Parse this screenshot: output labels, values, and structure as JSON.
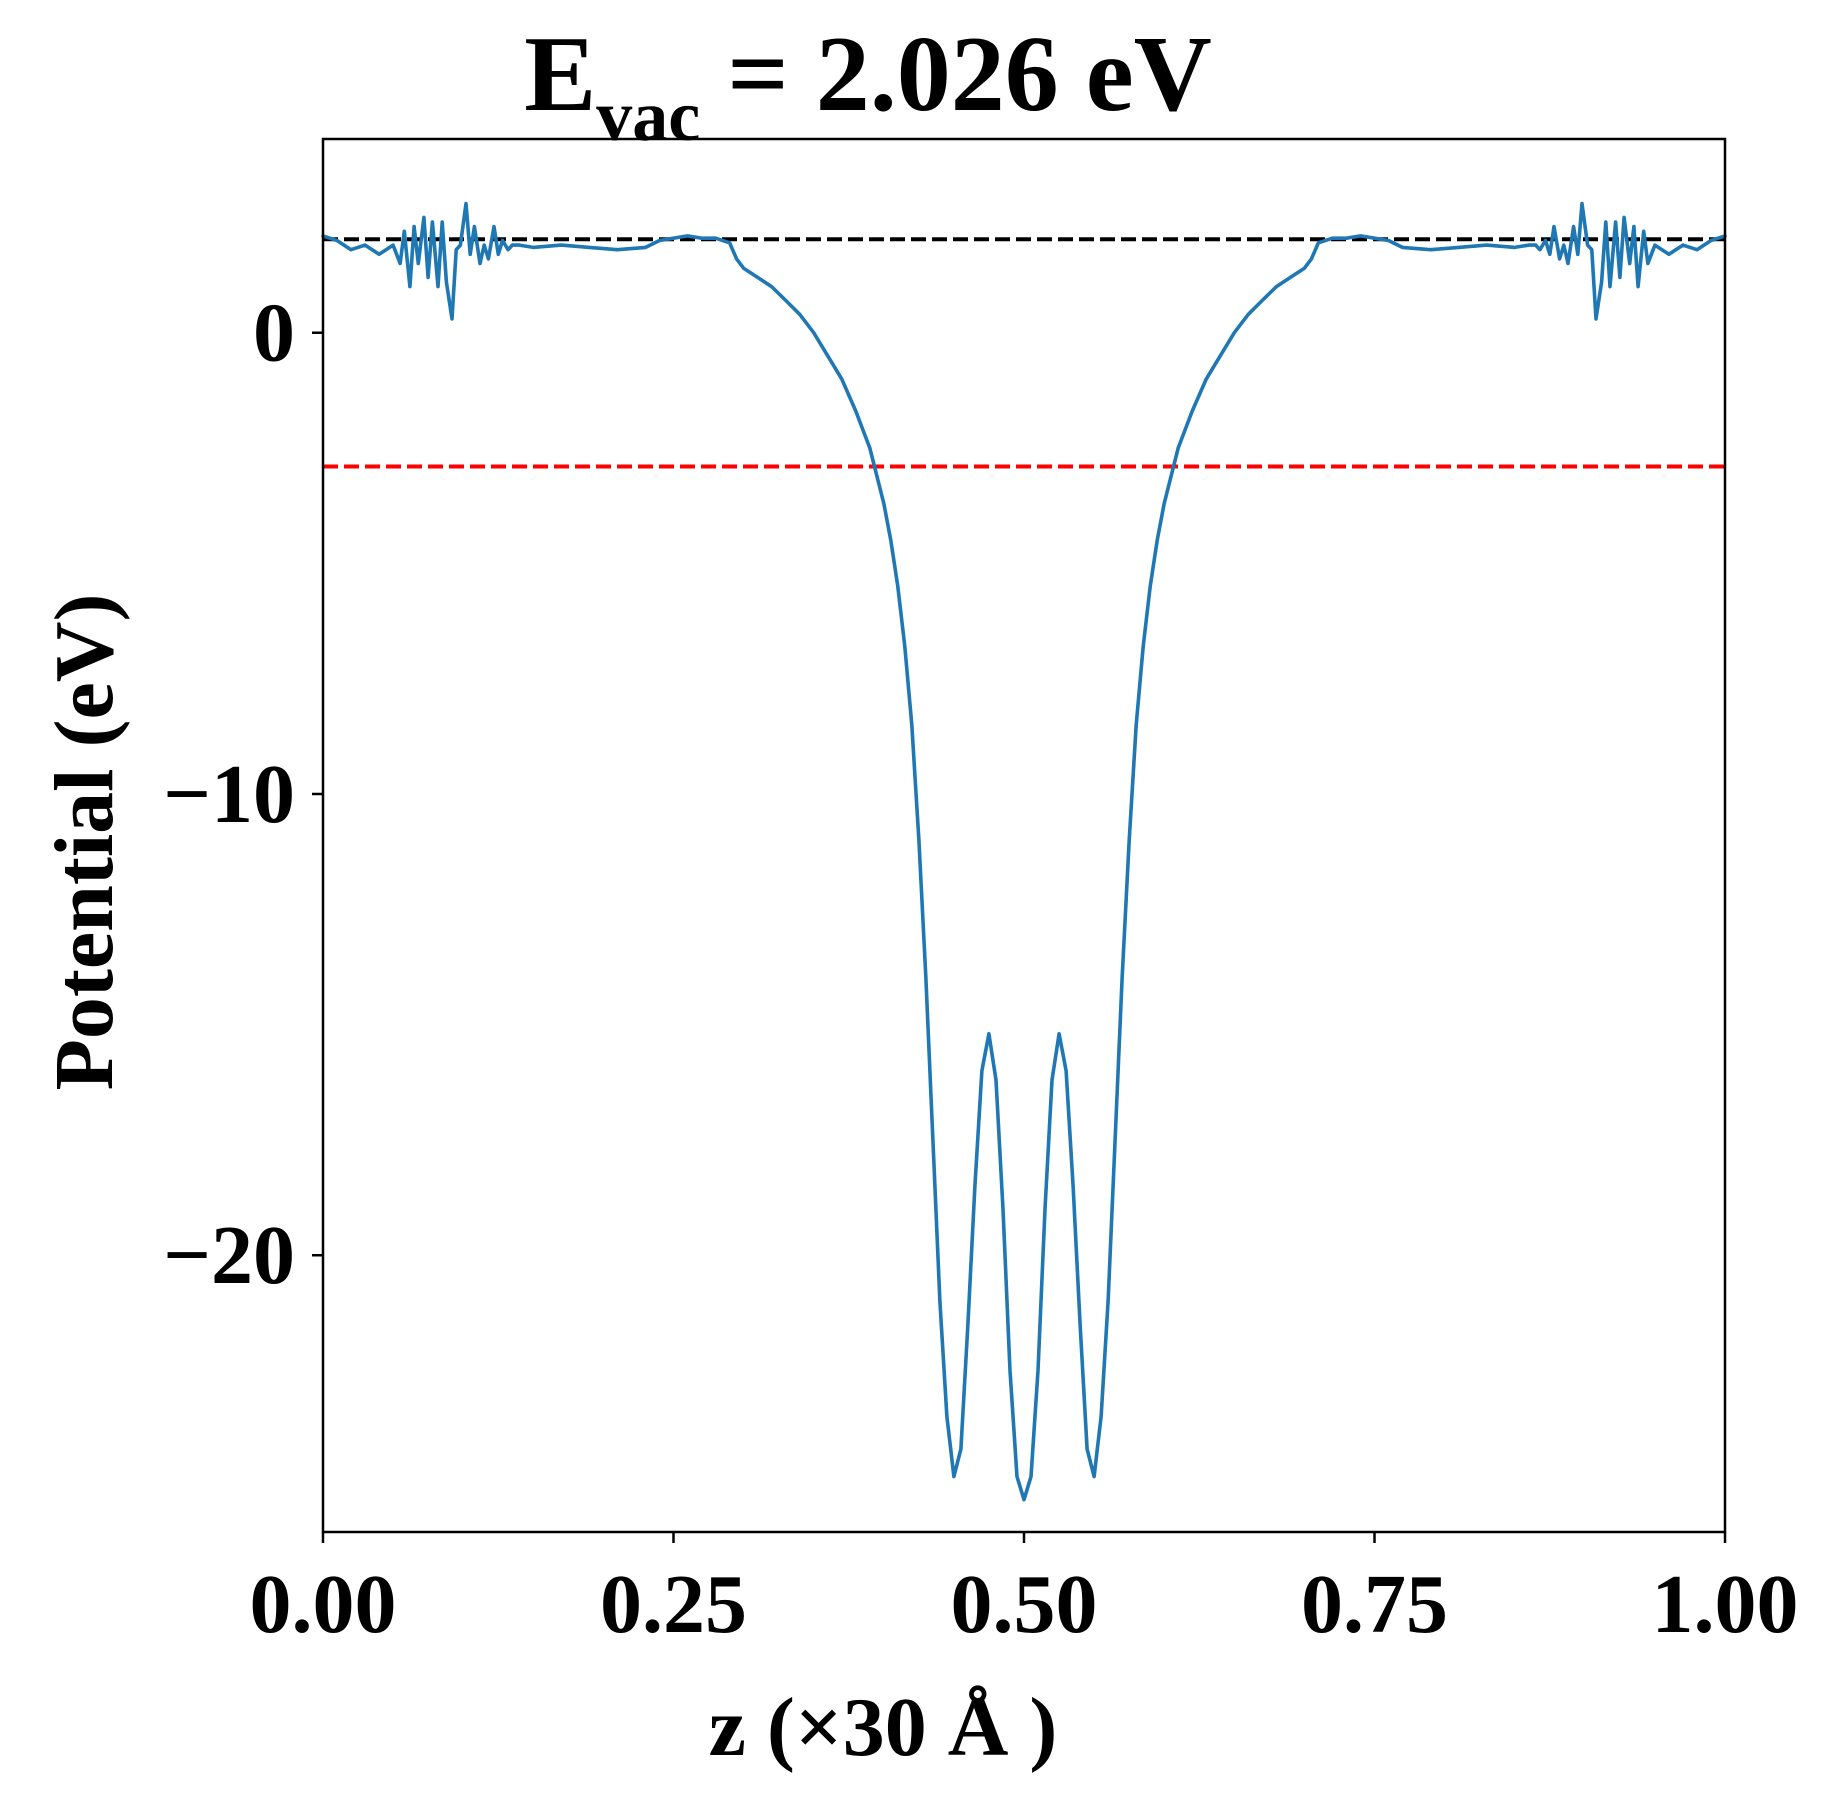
{
  "chart_data": {
    "type": "line",
    "title": {
      "prefix": "E",
      "subscript": "vac",
      "suffix": " = 2.026 eV"
    },
    "xlabel": "z (×30 Å )",
    "ylabel": "Potential (eV)",
    "xlim": [
      0.0,
      1.0
    ],
    "ylim": [
      -26.0,
      4.2
    ],
    "xticks": [
      0.0,
      0.25,
      0.5,
      0.75,
      1.0
    ],
    "xtick_labels": [
      "0.00",
      "0.25",
      "0.50",
      "0.75",
      "1.00"
    ],
    "yticks": [
      0,
      -10,
      -20
    ],
    "ytick_labels": [
      "0",
      "−10",
      "−20"
    ],
    "grid": false,
    "legend": "none",
    "reference_lines": [
      {
        "y": 2.026,
        "color": "#000000",
        "style": "dashed"
      },
      {
        "y": -2.9,
        "color": "#ff0000",
        "style": "dashed"
      }
    ],
    "series": [
      {
        "color": "#1f77b4",
        "x": [
          0.0,
          0.01,
          0.02,
          0.03,
          0.04,
          0.05,
          0.055,
          0.058,
          0.062,
          0.065,
          0.068,
          0.072,
          0.075,
          0.078,
          0.082,
          0.085,
          0.088,
          0.092,
          0.095,
          0.098,
          0.102,
          0.105,
          0.108,
          0.112,
          0.115,
          0.118,
          0.122,
          0.125,
          0.128,
          0.132,
          0.135,
          0.14,
          0.15,
          0.17,
          0.19,
          0.21,
          0.23,
          0.24,
          0.25,
          0.26,
          0.27,
          0.28,
          0.29,
          0.295,
          0.3,
          0.31,
          0.32,
          0.33,
          0.34,
          0.35,
          0.36,
          0.37,
          0.38,
          0.39,
          0.4,
          0.405,
          0.41,
          0.415,
          0.42,
          0.425,
          0.43,
          0.435,
          0.44,
          0.445,
          0.45,
          0.455,
          0.46,
          0.465,
          0.47,
          0.475,
          0.48,
          0.485,
          0.49,
          0.495,
          0.5,
          0.505,
          0.51,
          0.515,
          0.52,
          0.525,
          0.53,
          0.535,
          0.54,
          0.545,
          0.55,
          0.555,
          0.56,
          0.565,
          0.57,
          0.575,
          0.58,
          0.585,
          0.59,
          0.595,
          0.6,
          0.61,
          0.62,
          0.63,
          0.64,
          0.65,
          0.66,
          0.67,
          0.68,
          0.69,
          0.7,
          0.705,
          0.71,
          0.72,
          0.73,
          0.74,
          0.75,
          0.76,
          0.77,
          0.79,
          0.81,
          0.83,
          0.85,
          0.86,
          0.865,
          0.868,
          0.872,
          0.875,
          0.878,
          0.882,
          0.885,
          0.888,
          0.892,
          0.895,
          0.898,
          0.902,
          0.905,
          0.908,
          0.912,
          0.915,
          0.918,
          0.922,
          0.925,
          0.928,
          0.932,
          0.935,
          0.938,
          0.942,
          0.945,
          0.95,
          0.96,
          0.97,
          0.98,
          0.99,
          1.0
        ],
        "y": [
          2.1,
          2.0,
          1.8,
          1.9,
          1.7,
          1.9,
          1.5,
          2.2,
          1.0,
          2.3,
          1.5,
          2.5,
          1.2,
          2.4,
          1.0,
          2.4,
          1.1,
          0.3,
          1.8,
          1.9,
          2.8,
          1.7,
          2.3,
          1.5,
          1.9,
          1.6,
          2.3,
          1.7,
          2.0,
          1.8,
          1.9,
          1.9,
          1.85,
          1.9,
          1.85,
          1.8,
          1.85,
          2.0,
          2.05,
          2.1,
          2.05,
          2.05,
          1.95,
          1.6,
          1.4,
          1.2,
          1.0,
          0.7,
          0.4,
          0.0,
          -0.5,
          -1.0,
          -1.7,
          -2.5,
          -3.7,
          -4.5,
          -5.5,
          -6.8,
          -8.5,
          -11.0,
          -14.0,
          -17.5,
          -21.0,
          -23.5,
          -24.8,
          -24.2,
          -21.5,
          -18.5,
          -16.0,
          -15.2,
          -16.2,
          -19.0,
          -22.5,
          -24.8,
          -25.3,
          -24.8,
          -22.5,
          -19.0,
          -16.2,
          -15.2,
          -16.0,
          -18.5,
          -21.5,
          -24.2,
          -24.8,
          -23.5,
          -21.0,
          -17.5,
          -14.0,
          -11.0,
          -8.5,
          -6.8,
          -5.5,
          -4.5,
          -3.7,
          -2.5,
          -1.7,
          -1.0,
          -0.5,
          0.0,
          0.4,
          0.7,
          1.0,
          1.2,
          1.4,
          1.6,
          1.95,
          2.05,
          2.05,
          2.1,
          2.05,
          2.0,
          1.85,
          1.8,
          1.85,
          1.9,
          1.85,
          1.9,
          1.9,
          1.8,
          2.0,
          1.7,
          2.3,
          1.6,
          1.9,
          1.5,
          2.3,
          1.7,
          2.8,
          1.9,
          1.8,
          0.3,
          1.1,
          2.4,
          1.0,
          2.4,
          1.2,
          2.5,
          1.5,
          2.3,
          1.0,
          2.2,
          1.5,
          1.9,
          1.7,
          1.9,
          1.8,
          2.0,
          2.1
        ]
      }
    ]
  }
}
